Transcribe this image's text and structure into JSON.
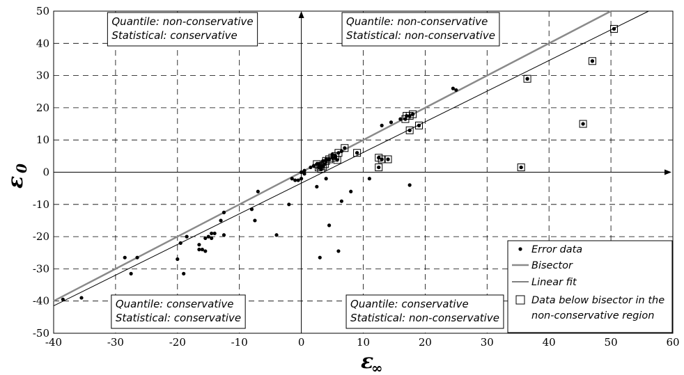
{
  "chart_data": {
    "type": "scatter",
    "xlabel": "ε",
    "xlabel_sub": "∞",
    "ylabel": "ε",
    "ylabel_sub": "0",
    "xlim": [
      -40,
      60
    ],
    "ylim": [
      -50,
      50
    ],
    "x_ticks": [
      -40,
      -30,
      -20,
      -10,
      0,
      10,
      20,
      30,
      40,
      50,
      60
    ],
    "y_ticks": [
      -50,
      -40,
      -30,
      -20,
      -10,
      0,
      10,
      20,
      30,
      40,
      50
    ],
    "grid": true,
    "legend_position": "bottom-right",
    "legend": [
      {
        "label": "Error data",
        "marker": "dot"
      },
      {
        "label": "Bisector",
        "marker": "gray-line"
      },
      {
        "label": "Linear fit",
        "marker": "black-line"
      },
      {
        "label": "Data below bisector in the non-conservative region",
        "label_lines": [
          "Data below bisector in the",
          "non-conservative region"
        ],
        "marker": "square"
      }
    ],
    "region_labels": {
      "top_left": [
        "Quantile: non-conservative",
        "Statistical: conservative"
      ],
      "top_right": [
        "Quantile: non-conservative",
        "Statistical: non-conservative"
      ],
      "bottom_left": [
        "Quantile: conservative",
        "Statistical: conservative"
      ],
      "bottom_right": [
        "Quantile: conservative",
        "Statistical: non-conservative"
      ]
    },
    "bisector": {
      "slope": 1,
      "intercept": 0
    },
    "linear_fit": {
      "slope": 0.952,
      "intercept": -3.4
    },
    "error_points": [
      [
        -38.5,
        -39.5
      ],
      [
        -35.5,
        -39
      ],
      [
        -28.5,
        -26.5
      ],
      [
        -27.5,
        -31.5
      ],
      [
        -26.5,
        -26.5
      ],
      [
        -20,
        -27
      ],
      [
        -19.5,
        -22
      ],
      [
        -19,
        -31.5
      ],
      [
        -18.5,
        -20
      ],
      [
        -16.5,
        -24
      ],
      [
        -16.5,
        -22.5
      ],
      [
        -16,
        -24
      ],
      [
        -15.5,
        -24.5
      ],
      [
        -15.5,
        -20.5
      ],
      [
        -15,
        -20
      ],
      [
        -14.5,
        -20.5
      ],
      [
        -14.5,
        -19
      ],
      [
        -14,
        -19
      ],
      [
        -13,
        -15
      ],
      [
        -12.5,
        -12.5
      ],
      [
        -12.5,
        -19.5
      ],
      [
        -8,
        -11.5
      ],
      [
        -7.5,
        -15
      ],
      [
        -7,
        -6
      ],
      [
        -4,
        -19.5
      ],
      [
        -2,
        -10
      ],
      [
        -1.5,
        -2
      ],
      [
        -1,
        -2.5
      ],
      [
        -0.5,
        -2.5
      ],
      [
        0,
        -2
      ],
      [
        0,
        0
      ],
      [
        0.5,
        0.5
      ],
      [
        0.5,
        -0.5
      ],
      [
        1.5,
        1.5
      ],
      [
        2,
        2
      ],
      [
        2.5,
        -4.5
      ],
      [
        3,
        -26.5
      ],
      [
        3.5,
        3.5
      ],
      [
        4,
        4
      ],
      [
        4,
        -2
      ],
      [
        4.5,
        -16.5
      ],
      [
        5,
        5.5
      ],
      [
        6,
        -24.5
      ],
      [
        6.5,
        6.5
      ],
      [
        6.5,
        -9
      ],
      [
        8,
        -6
      ],
      [
        9,
        6
      ],
      [
        11,
        -2
      ],
      [
        12.5,
        4.5
      ],
      [
        13,
        14.5
      ],
      [
        14.5,
        15.5
      ],
      [
        16,
        16.5
      ],
      [
        17.5,
        13
      ],
      [
        17.5,
        -4
      ],
      [
        18,
        18
      ],
      [
        19,
        14.5
      ],
      [
        24.5,
        26
      ],
      [
        25,
        25.5
      ],
      [
        35.5,
        1.5
      ],
      [
        36.5,
        29
      ],
      [
        45.5,
        15
      ],
      [
        47,
        34.5
      ],
      [
        50.5,
        44.5
      ],
      [
        2.8,
        2.5
      ],
      [
        3.2,
        1.8
      ],
      [
        5.5,
        4.5
      ],
      [
        12.5,
        1.5
      ],
      [
        14,
        4
      ]
    ],
    "squared_points": [
      [
        2.5,
        2.5
      ],
      [
        2.8,
        1.5
      ],
      [
        3,
        2
      ],
      [
        3.2,
        1
      ],
      [
        3.5,
        1.8
      ],
      [
        3.8,
        2.5
      ],
      [
        4,
        3.5
      ],
      [
        4.5,
        4
      ],
      [
        5,
        4.5
      ],
      [
        5.5,
        5
      ],
      [
        5.8,
        3.8
      ],
      [
        6,
        6
      ],
      [
        7,
        7.5
      ],
      [
        9,
        6
      ],
      [
        12.5,
        4.5
      ],
      [
        12.5,
        1.5
      ],
      [
        13,
        4
      ],
      [
        14,
        4
      ],
      [
        16.8,
        16.5
      ],
      [
        17,
        17.5
      ],
      [
        17.5,
        17.5
      ],
      [
        18,
        18
      ],
      [
        17.5,
        13
      ],
      [
        19,
        14.5
      ],
      [
        35.5,
        1.5
      ],
      [
        36.5,
        29
      ],
      [
        45.5,
        15
      ],
      [
        47,
        34.5
      ],
      [
        50.5,
        44.5
      ]
    ]
  }
}
